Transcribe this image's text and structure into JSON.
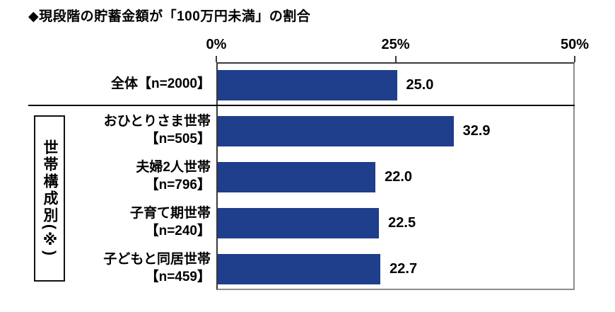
{
  "chart_data": {
    "type": "bar",
    "orientation": "horizontal",
    "title": "◆現段階の貯蓄金額が「100万円未満」の割合",
    "xlabel": "",
    "ylabel": "",
    "xlim": [
      0,
      50
    ],
    "x_ticks": [
      {
        "label": "0%",
        "value": 0
      },
      {
        "label": "25%",
        "value": 25
      },
      {
        "label": "50%",
        "value": 50
      }
    ],
    "grid": false,
    "bar_color": "#1f3e8c",
    "value_text_color": "#000000",
    "group_label": "世帯構成別(※)",
    "rows": [
      {
        "category": "全体【n=2000】",
        "lines": [
          "全体【n=2000】"
        ],
        "value": 25.0,
        "value_label": "25.0",
        "in_group": false
      },
      {
        "category": "おひとりさま世帯【n=505】",
        "lines": [
          "おひとりさま世帯",
          "【n=505】"
        ],
        "value": 32.9,
        "value_label": "32.9",
        "in_group": true
      },
      {
        "category": "夫婦2人世帯【n=796】",
        "lines": [
          "夫婦2人世帯",
          "【n=796】"
        ],
        "value": 22.0,
        "value_label": "22.0",
        "in_group": true
      },
      {
        "category": "子育て期世帯【n=240】",
        "lines": [
          "子育て期世帯",
          "【n=240】"
        ],
        "value": 22.5,
        "value_label": "22.5",
        "in_group": true
      },
      {
        "category": "子どもと同居世帯【n=459】",
        "lines": [
          "子どもと同居世帯",
          "【n=459】"
        ],
        "value": 22.7,
        "value_label": "22.7",
        "in_group": true
      }
    ]
  }
}
